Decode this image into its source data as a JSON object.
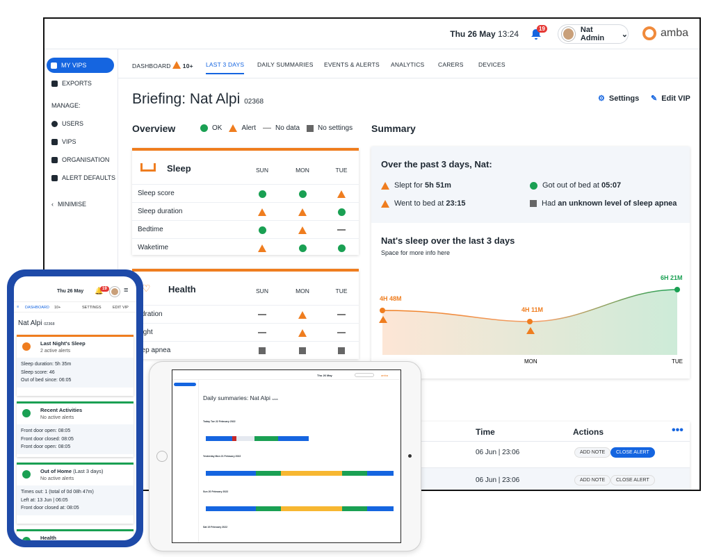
{
  "header": {
    "date": "Thu 26 May",
    "time": "13:24",
    "notif_count": "19",
    "user": "Nat Admin",
    "brand": "amba"
  },
  "sidebar": {
    "items": [
      "MY VIPS",
      "EXPORTS",
      "MANAGE:",
      "USERS",
      "VIPS",
      "ORGANISATION",
      "ALERT DEFAULTS",
      "MINIMISE"
    ]
  },
  "tabs": [
    "DASHBOARD",
    "10+",
    "LAST 3 DAYS",
    "DAILY SUMMARIES",
    "EVENTS & ALERTS",
    "ANALYTICS",
    "CARERS",
    "DEVICES"
  ],
  "page": {
    "title": "Briefing: Nat Alpi",
    "id": "02368",
    "settings": "Settings",
    "edit": "Edit VIP"
  },
  "overview": {
    "title": "Overview",
    "legend": [
      "OK",
      "Alert",
      "No data",
      "No settings"
    ]
  },
  "days": [
    "SUN",
    "MON",
    "TUE"
  ],
  "sleep": {
    "title": "Sleep",
    "rows": [
      {
        "label": "Sleep score",
        "s": [
          "ok",
          "ok",
          "alert"
        ]
      },
      {
        "label": "Sleep duration",
        "s": [
          "alert",
          "alert",
          "ok"
        ]
      },
      {
        "label": "Bedtime",
        "s": [
          "ok",
          "alert",
          "none"
        ]
      },
      {
        "label": "Waketime",
        "s": [
          "alert",
          "ok",
          "ok"
        ]
      }
    ]
  },
  "health": {
    "title": "Health",
    "rows": [
      {
        "label": "ydration",
        "s": [
          "none",
          "alert",
          "none"
        ]
      },
      {
        "label": "eight",
        "s": [
          "none",
          "alert",
          "none"
        ]
      },
      {
        "label": "eep apnea",
        "s": [
          "nosettings",
          "nosettings",
          "nosettings"
        ]
      }
    ]
  },
  "summary": {
    "title": "Summary",
    "heading": "Over the past 3 days, Nat:",
    "items": [
      {
        "pre": "Slept for ",
        "bold": "5h 51m"
      },
      {
        "pre": "Got out of bed at ",
        "bold": "05:07"
      },
      {
        "pre": "Went to bed at ",
        "bold": "23:15"
      },
      {
        "pre": "Had ",
        "bold": "an unknown level of sleep apnea"
      }
    ],
    "chart_title": "Nat's sleep over the last 3 days",
    "chart_sub": "Space for more info here"
  },
  "chart_data": {
    "type": "area",
    "categories": [
      "",
      "MON",
      "TUE"
    ],
    "labels": [
      "4H 48M",
      "4H 11M",
      "6H 21M"
    ],
    "values": [
      4.8,
      4.18,
      6.35
    ],
    "ylim": [
      0,
      7
    ],
    "colors": {
      "alert": "#ef7d1f",
      "ok": "#1aa053"
    }
  },
  "table": {
    "headers": [
      "Time",
      "Actions"
    ],
    "rows": [
      {
        "time": "06 Jun | 23:06",
        "add": "ADD NOTE",
        "close": "CLOSE ALERT"
      },
      {
        "time": "06 Jun | 23:06",
        "add": "ADD NOTE",
        "close": "CLOSE ALERT"
      }
    ]
  },
  "phone": {
    "date": "Thu 26 May",
    "count": "19",
    "nav": "DASHBOARD",
    "navcount": "10+",
    "settings": "SETTINGS",
    "edit": "EDIT VIP",
    "title": "Nat Alpi",
    "id": "02368",
    "cards": [
      {
        "title": "Last Night's Sleep",
        "sub": "2 active alerts",
        "lines": [
          "Sleep duration: 5h 35m",
          "Sleep score: 46",
          "Out of bed since: 06:05"
        ]
      },
      {
        "title": "Recent Activities",
        "sub": "No active alerts",
        "lines": [
          "Front door open: 08:05",
          "Front door closed: 08:05",
          "Front door open: 08:05"
        ]
      },
      {
        "title": "Out of Home",
        "title2": "(Last 3 days)",
        "sub": "No active alerts",
        "lines": [
          "Times out: 1 (total of 0d 08h 47m)",
          "Left at: 13 Jun | 06:05",
          "Front door closed at: 08:05"
        ]
      },
      {
        "title": "Health",
        "sub": "No active alerts",
        "lines": []
      }
    ]
  },
  "tablet": {
    "title": "Daily summaries: Nat Alpi",
    "id": "02368",
    "days": [
      "Today Tue 22 February 2022",
      "Yesterday Mon 21 February 2022",
      "Sun 20 February 2022",
      "Sat 19 February 2022"
    ]
  },
  "colors": {
    "brand": "#1565e0",
    "alert": "#ef7d1f",
    "ok": "#1aa053"
  }
}
